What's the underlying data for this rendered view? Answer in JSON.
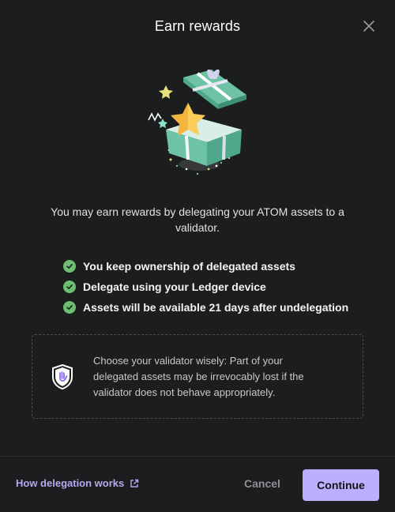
{
  "modal": {
    "title": "Earn rewards",
    "close_icon": "close-icon"
  },
  "intro": "You may earn rewards by delegating your ATOM assets to a validator.",
  "checklist": [
    "You keep ownership of delegated assets",
    "Delegate using your Ledger device",
    "Assets will be available 21 days after undelegation"
  ],
  "warning": {
    "icon": "shield-icon",
    "text": "Choose your validator wisely: Part of your delegated assets may be irrevocably lost if the validator does not behave appropriately."
  },
  "footer": {
    "link_label": "How delegation works",
    "link_icon": "external-link-icon",
    "cancel_label": "Cancel",
    "continue_label": "Continue"
  },
  "colors": {
    "background": "#1c1d1f",
    "accent": "#bbb0ff",
    "link": "#b6a8ef",
    "check": "#6ebe71",
    "gift": "#6ec3a6"
  }
}
